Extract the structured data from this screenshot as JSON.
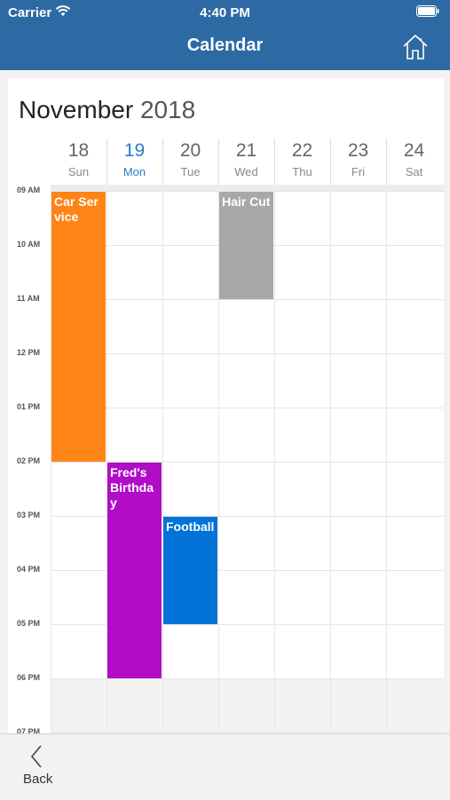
{
  "status": {
    "carrier": "Carrier",
    "time": "4:40 PM"
  },
  "nav": {
    "title": "Calendar",
    "home_icon": "home-icon"
  },
  "calendar": {
    "month": "November",
    "year": "2018",
    "days": [
      {
        "num": "18",
        "name": "Sun"
      },
      {
        "num": "19",
        "name": "Mon"
      },
      {
        "num": "20",
        "name": "Tue"
      },
      {
        "num": "21",
        "name": "Wed"
      },
      {
        "num": "22",
        "name": "Thu"
      },
      {
        "num": "23",
        "name": "Fri"
      },
      {
        "num": "24",
        "name": "Sat"
      }
    ],
    "today_index": 1,
    "hours": [
      "09 AM",
      "10 AM",
      "11 AM",
      "12 PM",
      "01 PM",
      "02 PM",
      "03 PM",
      "04 PM",
      "05 PM",
      "06 PM",
      "07 PM"
    ],
    "events": [
      {
        "title": "Car Service",
        "day": 0,
        "start_hour": 9,
        "end_hour": 14,
        "color": "#ff8417"
      },
      {
        "title": "Hair Cut",
        "day": 3,
        "start_hour": 9,
        "end_hour": 11,
        "color": "#a8a8a8"
      },
      {
        "title": "Fred's Birthday",
        "day": 1,
        "start_hour": 14,
        "end_hour": 18,
        "color": "#b10cc6"
      },
      {
        "title": "Football",
        "day": 2,
        "start_hour": 15,
        "end_hour": 17,
        "color": "#0272d8"
      }
    ]
  },
  "footer": {
    "back_label": "Back"
  },
  "colors": {
    "nav_bg": "#2d6aa3",
    "today": "#2d7cc9"
  }
}
